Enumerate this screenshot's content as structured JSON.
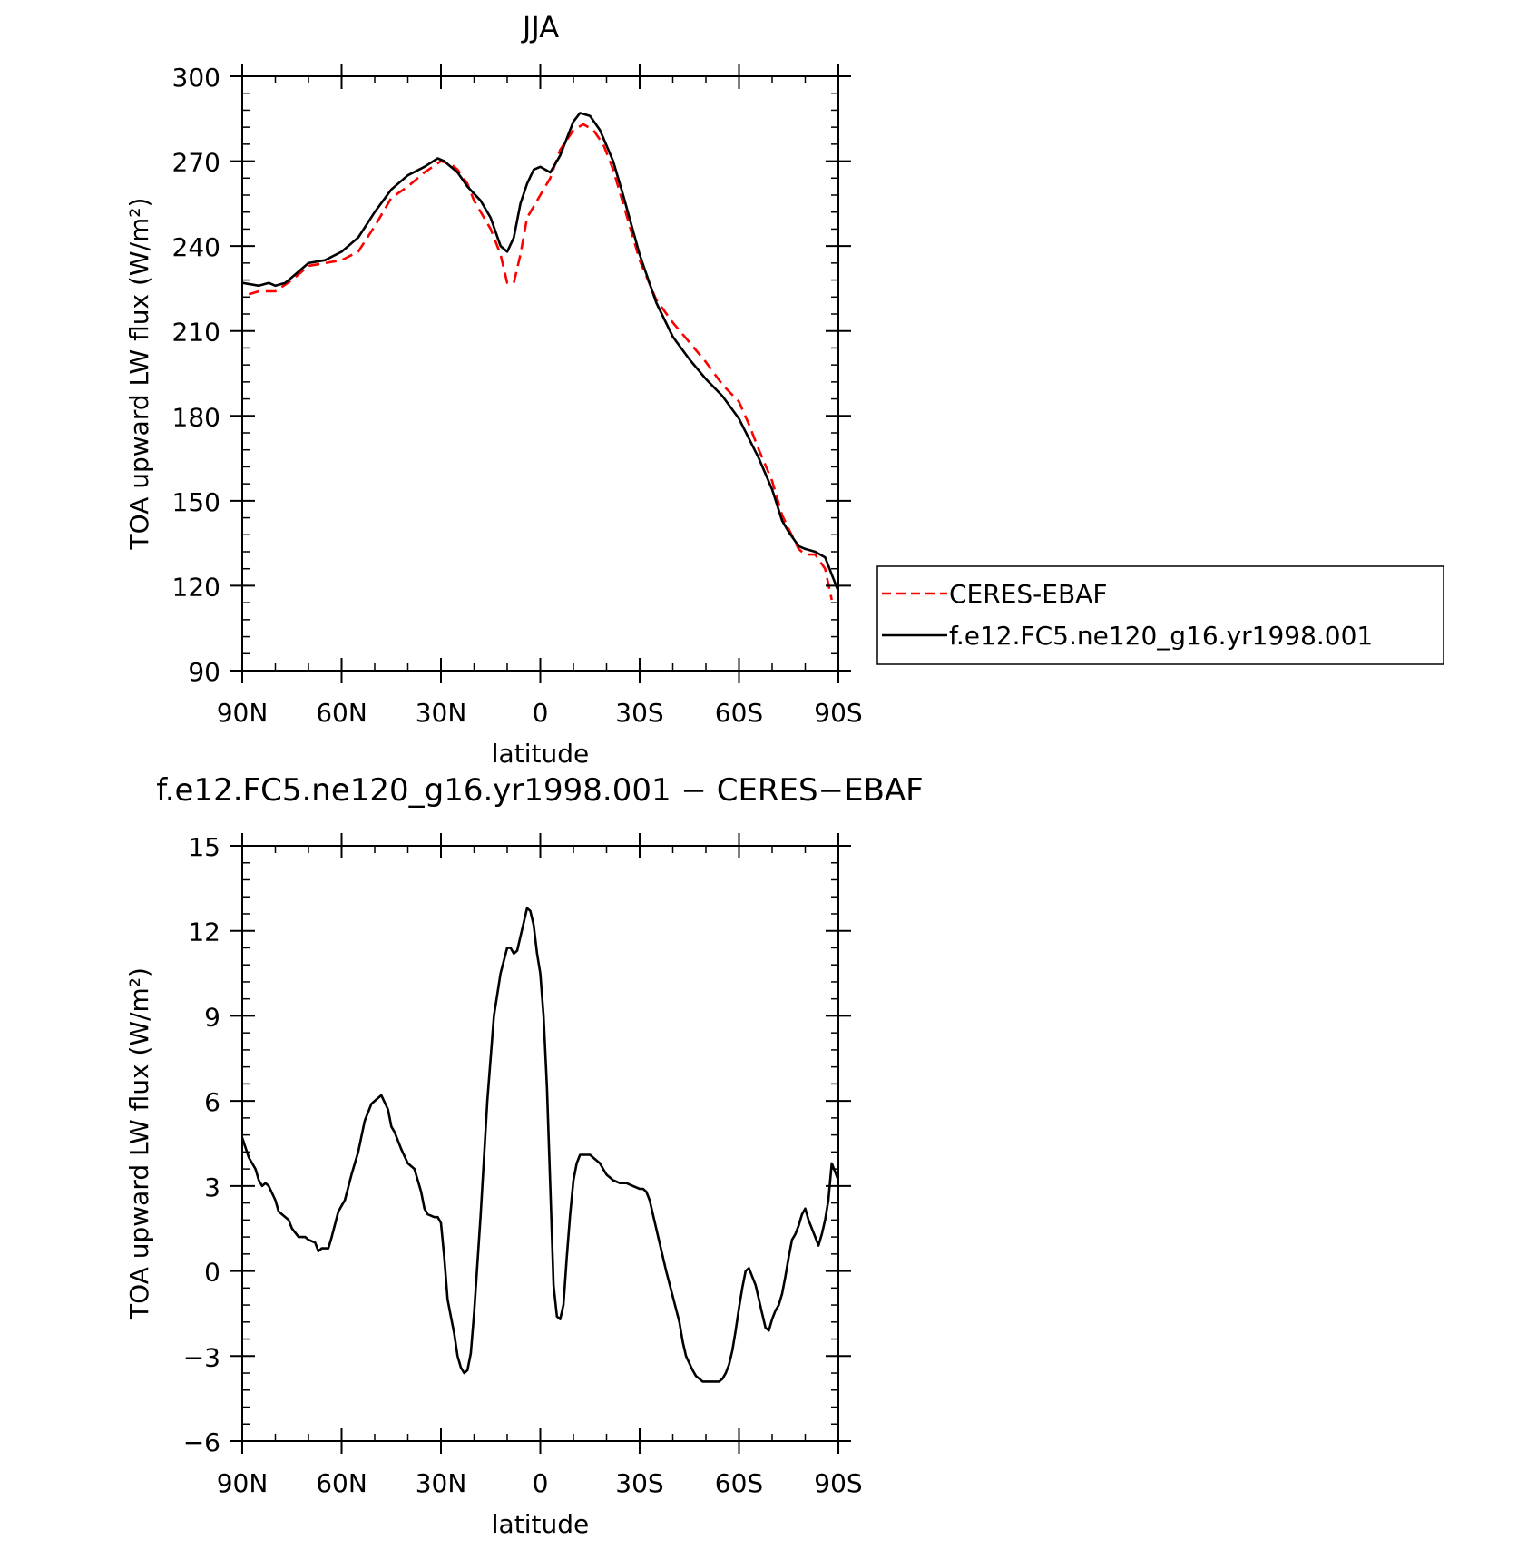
{
  "chart_data": [
    {
      "type": "line",
      "title": "JJA",
      "xlabel": "latitude",
      "ylabel": "TOA upward LW flux (W/m²)",
      "xlim": [
        90,
        -90
      ],
      "ylim": [
        90,
        300
      ],
      "xticks": [
        90,
        60,
        30,
        0,
        -30,
        -60,
        -90
      ],
      "xtick_labels": [
        "90N",
        "60N",
        "30N",
        "0",
        "30S",
        "60S",
        "90S"
      ],
      "yticks": [
        90,
        120,
        150,
        180,
        210,
        240,
        270,
        300
      ],
      "ytick_labels": [
        "90",
        "120",
        "150",
        "180",
        "210",
        "240",
        "270",
        "300"
      ],
      "grid": false,
      "legend_position": "right-outside",
      "series": [
        {
          "name": "CERES-EBAF",
          "color": "#ff0000",
          "dash": "dashed",
          "x": [
            88,
            85,
            80,
            75,
            70,
            65,
            60,
            55,
            50,
            45,
            40,
            35,
            30,
            27,
            25,
            22,
            20,
            15,
            12,
            10,
            8,
            6,
            4,
            2,
            0,
            -3,
            -6,
            -10,
            -13,
            -16,
            -19,
            -22,
            -25,
            -30,
            -35,
            -40,
            -45,
            -50,
            -55,
            -60,
            -63,
            -66,
            -70,
            -73,
            -75,
            -78,
            -80,
            -83,
            -86,
            -88
          ],
          "y": [
            223,
            224,
            224,
            228,
            233,
            234,
            235,
            238,
            247,
            257,
            261,
            266,
            270,
            269,
            267,
            262,
            256,
            246,
            237,
            227,
            227,
            237,
            250,
            254,
            258,
            264,
            274,
            281,
            283,
            281,
            276,
            267,
            255,
            235,
            221,
            213,
            206,
            199,
            191,
            185,
            177,
            168,
            157,
            145,
            140,
            133,
            131,
            131,
            126,
            115
          ]
        },
        {
          "name": "f.e12.FC5.ne120_g16.yr1998.001",
          "color": "#000000",
          "dash": "solid",
          "x": [
            90,
            85,
            82,
            80,
            77,
            75,
            70,
            65,
            60,
            55,
            50,
            45,
            40,
            35,
            31,
            29,
            25,
            22,
            18,
            15,
            12,
            10,
            8,
            6,
            4,
            2,
            0,
            -3,
            -6,
            -10,
            -12,
            -15,
            -18,
            -22,
            -25,
            -30,
            -35,
            -40,
            -45,
            -50,
            -55,
            -60,
            -63,
            -66,
            -70,
            -73,
            -75,
            -78,
            -80,
            -83,
            -86,
            -88,
            -90
          ],
          "y": [
            227,
            226,
            227,
            226,
            227,
            229,
            234,
            235,
            238,
            243,
            252,
            260,
            265,
            268,
            271,
            270,
            266,
            261,
            256,
            250,
            240,
            238,
            243,
            255,
            262,
            267,
            268,
            266,
            272,
            284,
            287,
            286,
            281,
            270,
            258,
            237,
            220,
            208,
            200,
            193,
            187,
            179,
            172,
            165,
            154,
            143,
            139,
            134,
            133,
            132,
            130,
            124,
            118
          ]
        }
      ]
    },
    {
      "type": "line",
      "title": "f.e12.FC5.ne120_g16.yr1998.001 − CERES−EBAF",
      "xlabel": "latitude",
      "ylabel": "TOA upward LW flux (W/m²)",
      "xlim": [
        90,
        -90
      ],
      "ylim": [
        -6,
        15
      ],
      "xticks": [
        90,
        60,
        30,
        0,
        -30,
        -60,
        -90
      ],
      "xtick_labels": [
        "90N",
        "60N",
        "30N",
        "0",
        "30S",
        "60S",
        "90S"
      ],
      "yticks": [
        -6,
        -3,
        0,
        3,
        6,
        9,
        12,
        15
      ],
      "ytick_labels": [
        "−6",
        "−3",
        "0",
        "3",
        "6",
        "9",
        "12",
        "15"
      ],
      "grid": false,
      "series": [
        {
          "color": "#000000",
          "dash": "solid",
          "x": [
            90,
            88,
            86,
            85,
            84,
            83,
            82,
            80,
            79,
            78,
            76,
            75,
            73,
            71,
            70,
            68,
            67,
            66,
            65,
            64,
            63,
            61,
            60,
            59,
            57,
            55,
            53,
            51,
            50,
            49,
            48,
            46,
            45,
            44,
            42,
            40,
            38,
            36,
            35,
            34,
            32,
            31,
            30,
            29,
            28,
            27,
            26,
            25,
            24,
            23,
            22,
            21,
            20,
            18,
            16,
            14,
            12,
            10,
            9,
            8,
            7,
            6,
            5,
            4,
            3,
            2,
            1,
            0,
            -1,
            -2,
            -3,
            -4,
            -5,
            -6,
            -7,
            -8,
            -9,
            -10,
            -11,
            -12,
            -13,
            -15,
            -16,
            -17,
            -18,
            -19,
            -20,
            -21,
            -22,
            -24,
            -26,
            -28,
            -30,
            -31,
            -32,
            -33,
            -34,
            -36,
            -38,
            -40,
            -42,
            -43,
            -44,
            -46,
            -47,
            -48,
            -49,
            -50,
            -51,
            -52,
            -53,
            -54,
            -55,
            -56,
            -57,
            -58,
            -59,
            -60,
            -61,
            -62,
            -63,
            -64,
            -65,
            -66,
            -67,
            -68,
            -69,
            -70,
            -71,
            -72,
            -73,
            -74,
            -75,
            -76,
            -77,
            -78,
            -79,
            -80,
            -81,
            -82,
            -83,
            -84,
            -85,
            -86,
            -87,
            -88,
            -89,
            -90
          ],
          "y": [
            4.7,
            4.0,
            3.6,
            3.2,
            3.0,
            3.1,
            3.0,
            2.5,
            2.1,
            2.0,
            1.8,
            1.5,
            1.2,
            1.2,
            1.1,
            1.0,
            0.7,
            0.8,
            0.8,
            0.8,
            1.2,
            2.1,
            2.3,
            2.5,
            3.4,
            4.2,
            5.3,
            5.9,
            6.0,
            6.1,
            6.2,
            5.7,
            5.1,
            4.9,
            4.3,
            3.8,
            3.6,
            2.8,
            2.2,
            2.0,
            1.9,
            1.9,
            1.7,
            0.5,
            -1.0,
            -1.6,
            -2.2,
            -3.0,
            -3.4,
            -3.6,
            -3.5,
            -2.9,
            -1.5,
            2.0,
            6.0,
            9.0,
            10.5,
            11.4,
            11.4,
            11.2,
            11.3,
            11.8,
            12.3,
            12.8,
            12.7,
            12.2,
            11.2,
            10.5,
            9.0,
            6.5,
            3.0,
            -0.5,
            -1.6,
            -1.7,
            -1.2,
            0.5,
            2.0,
            3.2,
            3.8,
            4.1,
            4.1,
            4.1,
            4.0,
            3.9,
            3.8,
            3.6,
            3.4,
            3.3,
            3.2,
            3.1,
            3.1,
            3.0,
            2.9,
            2.9,
            2.8,
            2.5,
            2.0,
            1.0,
            0.0,
            -0.9,
            -1.8,
            -2.5,
            -3.0,
            -3.5,
            -3.7,
            -3.8,
            -3.9,
            -3.9,
            -3.9,
            -3.9,
            -3.9,
            -3.9,
            -3.8,
            -3.6,
            -3.3,
            -2.8,
            -2.1,
            -1.3,
            -0.6,
            0.0,
            0.1,
            -0.2,
            -0.5,
            -1.0,
            -1.5,
            -2.0,
            -2.1,
            -1.7,
            -1.4,
            -1.2,
            -0.8,
            -0.2,
            0.5,
            1.1,
            1.3,
            1.6,
            2.0,
            2.2,
            1.8,
            1.5,
            1.2,
            0.9,
            1.3,
            1.8,
            2.5,
            3.8,
            3.5,
            3.2
          ]
        }
      ]
    }
  ],
  "legend": {
    "item_1": "CERES-EBAF",
    "item_2": "f.e12.FC5.ne120_g16.yr1998.001"
  }
}
